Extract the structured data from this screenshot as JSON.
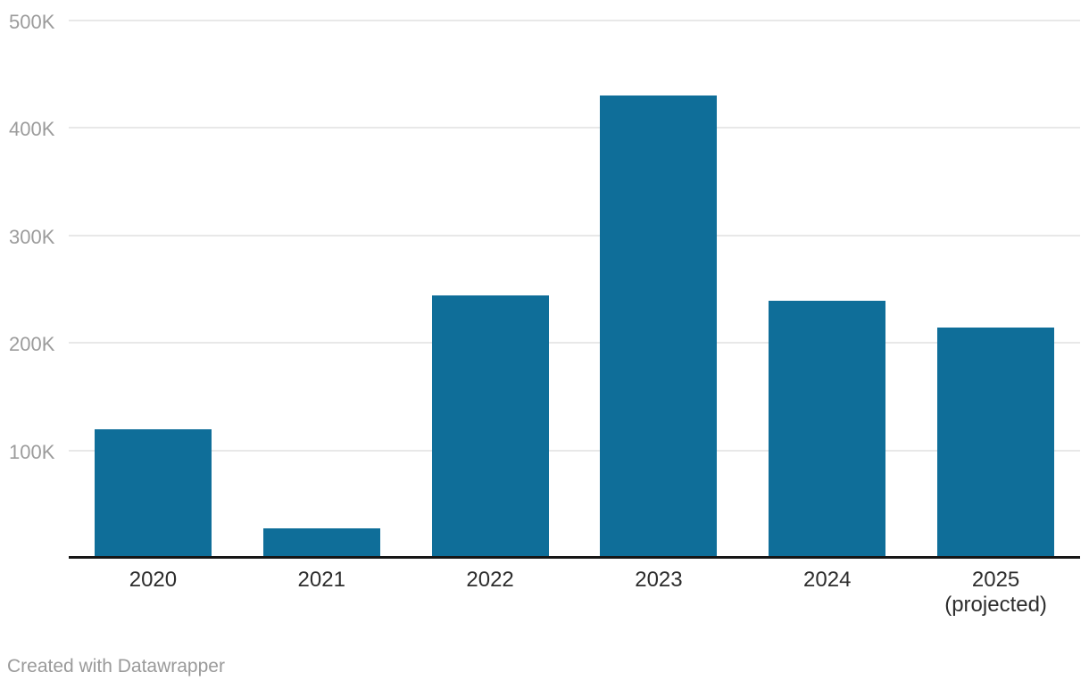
{
  "chart_data": {
    "type": "bar",
    "categories": [
      "2020",
      "2021",
      "2022",
      "2023",
      "2024",
      "2025\n(projected)"
    ],
    "values": [
      120000,
      27000,
      244000,
      430000,
      239000,
      214000
    ],
    "title": "",
    "xlabel": "",
    "ylabel": "",
    "ylim": [
      0,
      500000
    ],
    "y_ticks": [
      {
        "value": 100000,
        "label": "100K"
      },
      {
        "value": 200000,
        "label": "200K"
      },
      {
        "value": 300000,
        "label": "300K"
      },
      {
        "value": 400000,
        "label": "400K"
      },
      {
        "value": 500000,
        "label": "500K"
      }
    ],
    "grid": true,
    "legend": false
  },
  "footer": {
    "credit": "Created with Datawrapper"
  },
  "colors": {
    "bar": "#0f6e99",
    "gridline": "#e8e8e8",
    "axis_line": "#161616",
    "y_tick_label": "#9c9c9c",
    "x_tick_label": "#2d2d2d",
    "credit": "#9a9a9a",
    "background": "#ffffff"
  }
}
